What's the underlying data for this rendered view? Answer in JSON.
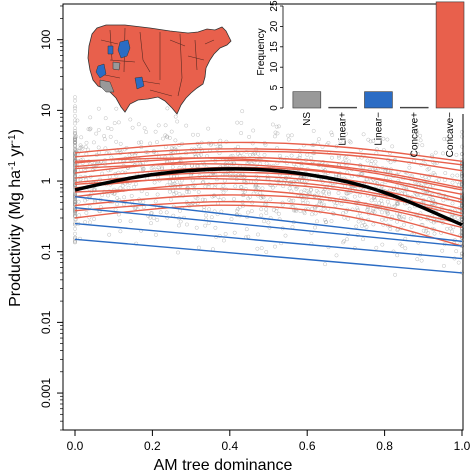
{
  "chart_data": [
    {
      "type": "scatter",
      "title": "",
      "xlabel": "AM tree dominance",
      "ylabel_main": "Productivity (Mg ha",
      "ylabel_sup1": "-1",
      "ylabel_mid": " yr",
      "ylabel_sup2": "-1",
      "ylabel_end": ")",
      "xlim": [
        0,
        1
      ],
      "ylim": [
        0.0003,
        320
      ],
      "y_scale": "log",
      "x_ticks": [
        "0.0",
        "0.2",
        "0.4",
        "0.6",
        "0.8",
        "1.0"
      ],
      "x_tick_values": [
        0,
        0.2,
        0.4,
        0.6,
        0.8,
        1.0
      ],
      "y_ticks": [
        "0.001",
        "0.01",
        "0.1",
        "1",
        "10",
        "100"
      ],
      "y_tick_values": [
        0.001,
        0.01,
        0.1,
        1,
        10,
        100
      ],
      "points_color": "#8c8c8c",
      "overall_fit": {
        "color": "#000000",
        "x": [
          0,
          0.1,
          0.2,
          0.3,
          0.4,
          0.5,
          0.6,
          0.7,
          0.8,
          0.9,
          1.0
        ],
        "y": [
          0.75,
          1.0,
          1.25,
          1.42,
          1.5,
          1.45,
          1.25,
          1.0,
          0.7,
          0.42,
          0.24
        ]
      },
      "ecoregion_fits": [
        {
          "color": "#e8604c",
          "x": [
            0,
            0.25,
            0.5,
            0.75,
            1.0
          ],
          "y": [
            2.5,
            3.4,
            3.6,
            2.9,
            1.9
          ]
        },
        {
          "color": "#e8604c",
          "x": [
            0,
            0.25,
            0.5,
            0.75,
            1.0
          ],
          "y": [
            2.2,
            2.8,
            2.9,
            2.5,
            1.7
          ]
        },
        {
          "color": "#e8604c",
          "x": [
            0,
            0.25,
            0.5,
            0.75,
            1.0
          ],
          "y": [
            1.8,
            2.5,
            2.7,
            2.3,
            1.4
          ]
        },
        {
          "color": "#e8604c",
          "x": [
            0,
            0.25,
            0.5,
            0.75,
            1.0
          ],
          "y": [
            1.6,
            2.1,
            2.2,
            1.7,
            1.0
          ]
        },
        {
          "color": "#e8604c",
          "x": [
            0,
            0.25,
            0.5,
            0.75,
            1.0
          ],
          "y": [
            1.3,
            1.9,
            2.0,
            1.5,
            0.8
          ]
        },
        {
          "color": "#e8604c",
          "x": [
            0,
            0.25,
            0.5,
            0.75,
            1.0
          ],
          "y": [
            1.1,
            1.5,
            1.6,
            1.2,
            0.65
          ]
        },
        {
          "color": "#e8604c",
          "x": [
            0,
            0.25,
            0.5,
            0.75,
            1.0
          ],
          "y": [
            0.95,
            1.3,
            1.35,
            1.0,
            0.5
          ]
        },
        {
          "color": "#e8604c",
          "x": [
            0,
            0.25,
            0.5,
            0.75,
            1.0
          ],
          "y": [
            0.8,
            1.15,
            1.2,
            0.85,
            0.4
          ]
        },
        {
          "color": "#e8604c",
          "x": [
            0,
            0.25,
            0.5,
            0.75,
            1.0
          ],
          "y": [
            0.6,
            0.9,
            0.95,
            0.7,
            0.32
          ]
        },
        {
          "color": "#e8604c",
          "x": [
            0,
            0.25,
            0.5,
            0.75,
            1.0
          ],
          "y": [
            0.45,
            0.62,
            0.65,
            0.48,
            0.22
          ]
        },
        {
          "color": "#e8604c",
          "x": [
            0,
            0.25,
            0.5,
            0.75,
            1.0
          ],
          "y": [
            0.38,
            0.5,
            0.52,
            0.38,
            0.16
          ]
        },
        {
          "color": "#e8604c",
          "x": [
            0,
            0.25,
            0.5,
            0.75,
            1.0
          ],
          "y": [
            0.3,
            0.45,
            0.46,
            0.3,
            0.12
          ]
        },
        {
          "color": "#e8604c",
          "x": [
            0,
            0.25,
            0.5,
            0.75,
            1.0
          ],
          "y": [
            1.9,
            2.2,
            2.0,
            1.4,
            0.75
          ]
        },
        {
          "color": "#e8604c",
          "x": [
            0,
            0.25,
            0.5,
            0.75,
            1.0
          ],
          "y": [
            1.5,
            1.8,
            1.7,
            1.2,
            0.55
          ]
        },
        {
          "color": "#e8604c",
          "x": [
            0,
            0.25,
            0.5,
            0.75,
            1.0
          ],
          "y": [
            0.9,
            1.1,
            1.05,
            0.75,
            0.35
          ]
        },
        {
          "color": "#e8604c",
          "x": [
            0,
            0.25,
            0.5,
            0.75,
            1.0
          ],
          "y": [
            0.7,
            0.8,
            0.75,
            0.5,
            0.25
          ]
        },
        {
          "color": "#2b6cc4",
          "x": [
            0,
            1.0
          ],
          "y": [
            0.6,
            0.14
          ]
        },
        {
          "color": "#2b6cc4",
          "x": [
            0,
            1.0
          ],
          "y": [
            0.25,
            0.08
          ]
        },
        {
          "color": "#2b6cc4",
          "x": [
            0,
            1.0
          ],
          "y": [
            0.15,
            0.05
          ]
        },
        {
          "color": "#2b6cc4",
          "x": [
            0,
            1.0
          ],
          "y": [
            0.42,
            0.12
          ]
        }
      ]
    },
    {
      "type": "bar",
      "title": "",
      "ylabel": "Frequency",
      "ylim": [
        0,
        25
      ],
      "y_ticks": [
        "0",
        "5",
        "10",
        "15",
        "20",
        "25"
      ],
      "y_tick_values": [
        0,
        5,
        10,
        15,
        20,
        25
      ],
      "categories": [
        "NS",
        "Linear+",
        "Linear−",
        "Concave+",
        "Concave−"
      ],
      "values": [
        4,
        0,
        4,
        0,
        26
      ],
      "colors": [
        "#999999",
        "#999999",
        "#2b6cc4",
        "#999999",
        "#e8604c"
      ]
    }
  ],
  "map": {
    "colors": {
      "ecoregion": "#e8604c",
      "linear_negative": "#2b6cc4",
      "not_significant": "#999999"
    }
  }
}
